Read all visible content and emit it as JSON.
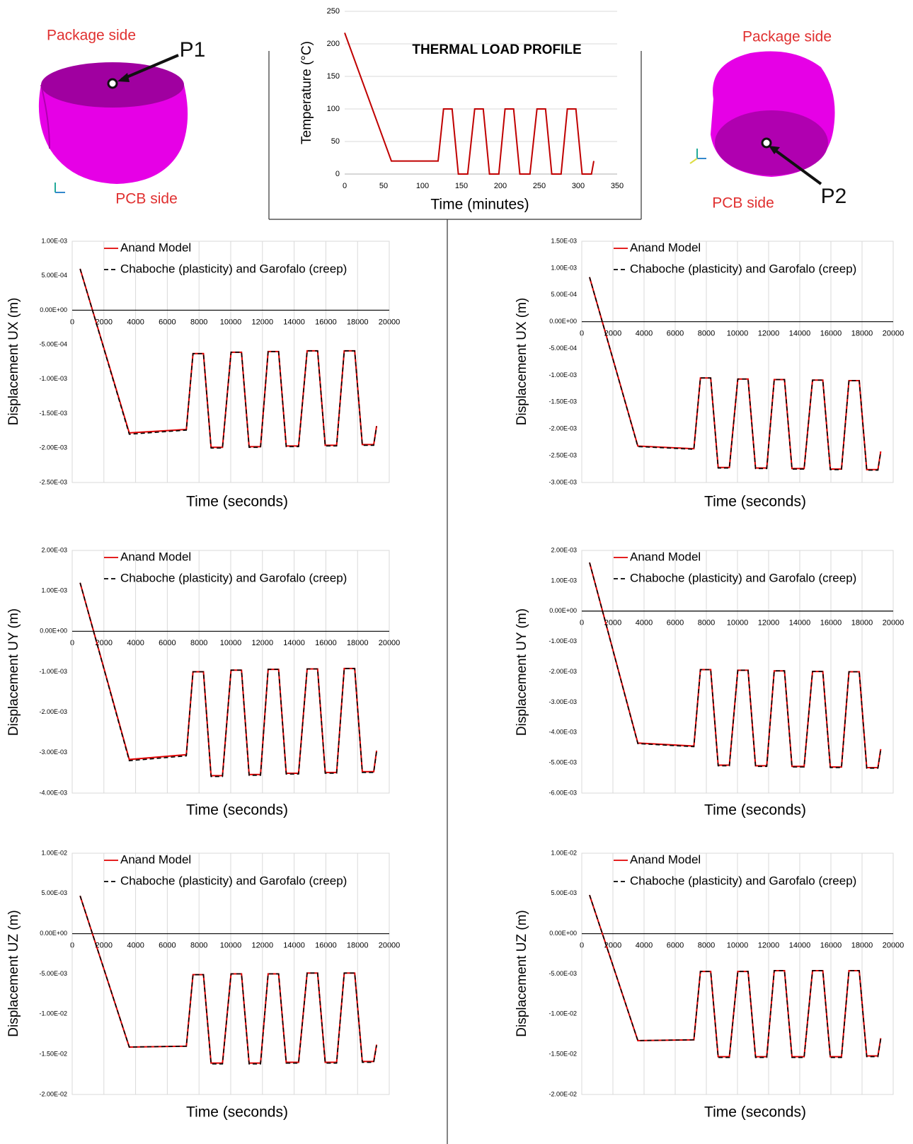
{
  "illustrations": [
    {
      "top_label": "Package side",
      "point": "P1",
      "bottom_label": "PCB side"
    },
    {
      "top_label": "Package side",
      "point": "P2",
      "bottom_label": "PCB side"
    }
  ],
  "chart_data": [
    {
      "type": "line",
      "title": "THERMAL LOAD PROFILE",
      "xlabel": "Time (minutes)",
      "ylabel": "Temperature (°C)",
      "x": [
        0,
        60,
        120,
        127,
        138,
        146,
        158,
        167,
        178,
        186,
        198,
        206,
        217,
        225,
        238,
        247,
        258,
        266,
        278,
        286,
        297,
        305,
        317,
        320
      ],
      "values": [
        217,
        20,
        20,
        100,
        100,
        0,
        0,
        100,
        100,
        0,
        0,
        100,
        100,
        0,
        0,
        100,
        100,
        0,
        0,
        100,
        100,
        0,
        0,
        20
      ],
      "color": "#c00000",
      "xlim": [
        0,
        350
      ],
      "xticks": [
        0,
        50,
        100,
        150,
        200,
        250,
        300,
        350
      ],
      "ylim": [
        0,
        250
      ],
      "yticks": [
        0,
        50,
        100,
        150,
        200,
        250
      ],
      "grid": "y"
    },
    {
      "type": "line",
      "xlabel": "Time (seconds)",
      "ylabel": "Displacement UX (m)",
      "legend": "upper left",
      "grid": "x",
      "x": [
        500,
        3600,
        7200,
        7620,
        8280,
        8760,
        9480,
        10020,
        10680,
        11160,
        11880,
        12360,
        13020,
        13500,
        14280,
        14820,
        15480,
        15960,
        16680,
        17160,
        17820,
        18300,
        19020,
        19200
      ],
      "series": [
        {
          "name": "Anand Model",
          "color": "#e00000",
          "style": "solid",
          "values": [
            0.0006,
            -0.00178,
            -0.00173,
            -0.00063,
            -0.00063,
            -0.00199,
            -0.00199,
            -0.00061,
            -0.00061,
            -0.00198,
            -0.00198,
            -0.0006,
            -0.0006,
            -0.00197,
            -0.00197,
            -0.00059,
            -0.00059,
            -0.00196,
            -0.00196,
            -0.00059,
            -0.00059,
            -0.00195,
            -0.00195,
            -0.00168
          ]
        },
        {
          "name": "Chaboche (plasticity) and Garofalo (creep)",
          "color": "#000000",
          "style": "dashed",
          "values": [
            0.0006,
            -0.0018,
            -0.00174,
            -0.00063,
            -0.00063,
            -0.002,
            -0.002,
            -0.00061,
            -0.00061,
            -0.00199,
            -0.00199,
            -0.0006,
            -0.0006,
            -0.00198,
            -0.00198,
            -0.00059,
            -0.00059,
            -0.00197,
            -0.00197,
            -0.00059,
            -0.00059,
            -0.00196,
            -0.00196,
            -0.00169
          ]
        }
      ],
      "xlim": [
        0,
        20000
      ],
      "xticks": [
        0,
        2000,
        4000,
        6000,
        8000,
        10000,
        12000,
        14000,
        16000,
        18000,
        20000
      ],
      "ylim": [
        -0.0025,
        0.001
      ],
      "yticks": [
        {
          "value": 0.001,
          "label": "1.00E-03"
        },
        {
          "value": 0.0005,
          "label": "5.00E-04"
        },
        {
          "value": 0,
          "label": "0.00E+00"
        },
        {
          "value": -0.0005,
          "label": "-5.00E-04"
        },
        {
          "value": -0.001,
          "label": "-1.00E-03"
        },
        {
          "value": -0.0015,
          "label": "-1.50E-03"
        },
        {
          "value": -0.002,
          "label": "-2.00E-03"
        },
        {
          "value": -0.0025,
          "label": "-2.50E-03"
        }
      ]
    },
    {
      "type": "line",
      "xlabel": "Time (seconds)",
      "ylabel": "Displacement UX (m)",
      "legend": "upper left",
      "grid": "x",
      "x": [
        500,
        3600,
        7200,
        7620,
        8280,
        8760,
        9480,
        10020,
        10680,
        11160,
        11880,
        12360,
        13020,
        13500,
        14280,
        14820,
        15480,
        15960,
        16680,
        17160,
        17820,
        18300,
        19020,
        19200
      ],
      "series": [
        {
          "name": "Anand Model",
          "color": "#e00000",
          "style": "solid",
          "values": [
            0.00083,
            -0.00232,
            -0.00237,
            -0.00105,
            -0.00105,
            -0.00272,
            -0.00272,
            -0.00107,
            -0.00107,
            -0.00273,
            -0.00273,
            -0.00108,
            -0.00108,
            -0.00274,
            -0.00274,
            -0.00109,
            -0.00109,
            -0.00275,
            -0.00275,
            -0.0011,
            -0.0011,
            -0.00276,
            -0.00276,
            -0.00242
          ]
        },
        {
          "name": "Chaboche (plasticity) and Garofalo (creep)",
          "color": "#000000",
          "style": "dashed",
          "values": [
            0.00083,
            -0.00233,
            -0.00238,
            -0.00105,
            -0.00105,
            -0.00273,
            -0.00273,
            -0.00107,
            -0.00107,
            -0.00274,
            -0.00274,
            -0.00108,
            -0.00108,
            -0.00275,
            -0.00275,
            -0.00109,
            -0.00109,
            -0.00276,
            -0.00276,
            -0.0011,
            -0.0011,
            -0.00277,
            -0.00277,
            -0.00243
          ]
        }
      ],
      "xlim": [
        0,
        20000
      ],
      "xticks": [
        0,
        2000,
        4000,
        6000,
        8000,
        10000,
        12000,
        14000,
        16000,
        18000,
        20000
      ],
      "ylim": [
        -0.003,
        0.0015
      ],
      "yticks": [
        {
          "value": 0.0015,
          "label": "1.50E-03"
        },
        {
          "value": 0.001,
          "label": "1.00E-03"
        },
        {
          "value": 0.0005,
          "label": "5.00E-04"
        },
        {
          "value": 0,
          "label": "0.00E+00"
        },
        {
          "value": -0.0005,
          "label": "-5.00E-04"
        },
        {
          "value": -0.001,
          "label": "-1.00E-03"
        },
        {
          "value": -0.0015,
          "label": "-1.50E-03"
        },
        {
          "value": -0.002,
          "label": "-2.00E-03"
        },
        {
          "value": -0.0025,
          "label": "-2.50E-03"
        },
        {
          "value": -0.003,
          "label": "-3.00E-03"
        }
      ]
    },
    {
      "type": "line",
      "xlabel": "Time (seconds)",
      "ylabel": "Displacement UY (m)",
      "legend": "upper left",
      "grid": "x",
      "x": [
        500,
        3600,
        7200,
        7620,
        8280,
        8760,
        9480,
        10020,
        10680,
        11160,
        11880,
        12360,
        13020,
        13500,
        14280,
        14820,
        15480,
        15960,
        16680,
        17160,
        17820,
        18300,
        19020,
        19200
      ],
      "series": [
        {
          "name": "Anand Model",
          "color": "#e00000",
          "style": "solid",
          "values": [
            0.0012,
            -0.00317,
            -0.00305,
            -0.001,
            -0.001,
            -0.00357,
            -0.00357,
            -0.00096,
            -0.00096,
            -0.00354,
            -0.00354,
            -0.00094,
            -0.00094,
            -0.00351,
            -0.00351,
            -0.00093,
            -0.00093,
            -0.00349,
            -0.00349,
            -0.00092,
            -0.00092,
            -0.00347,
            -0.00347,
            -0.00295
          ]
        },
        {
          "name": "Chaboche (plasticity) and Garofalo (creep)",
          "color": "#000000",
          "style": "dashed",
          "values": [
            0.0012,
            -0.0032,
            -0.00308,
            -0.001,
            -0.001,
            -0.00359,
            -0.00359,
            -0.00096,
            -0.00096,
            -0.00356,
            -0.00356,
            -0.00094,
            -0.00094,
            -0.00353,
            -0.00353,
            -0.00093,
            -0.00093,
            -0.00351,
            -0.00351,
            -0.00092,
            -0.00092,
            -0.00349,
            -0.00349,
            -0.00297
          ]
        }
      ],
      "xlim": [
        0,
        20000
      ],
      "xticks": [
        0,
        2000,
        4000,
        6000,
        8000,
        10000,
        12000,
        14000,
        16000,
        18000,
        20000
      ],
      "ylim": [
        -0.004,
        0.002
      ],
      "yticks": [
        {
          "value": 0.002,
          "label": "2.00E-03"
        },
        {
          "value": 0.001,
          "label": "1.00E-03"
        },
        {
          "value": 0,
          "label": "0.00E+00"
        },
        {
          "value": -0.001,
          "label": "-1.00E-03"
        },
        {
          "value": -0.002,
          "label": "-2.00E-03"
        },
        {
          "value": -0.003,
          "label": "-3.00E-03"
        },
        {
          "value": -0.004,
          "label": "-4.00E-03"
        }
      ]
    },
    {
      "type": "line",
      "xlabel": "Time (seconds)",
      "ylabel": "Displacement UY (m)",
      "legend": "upper left",
      "grid": "x",
      "x": [
        500,
        3600,
        7200,
        7620,
        8280,
        8760,
        9480,
        10020,
        10680,
        11160,
        11880,
        12360,
        13020,
        13500,
        14280,
        14820,
        15480,
        15960,
        16680,
        17160,
        17820,
        18300,
        19020,
        19200
      ],
      "series": [
        {
          "name": "Anand Model",
          "color": "#e00000",
          "style": "solid",
          "values": [
            0.0016,
            -0.00435,
            -0.00445,
            -0.00193,
            -0.00193,
            -0.00508,
            -0.00508,
            -0.00195,
            -0.00195,
            -0.0051,
            -0.0051,
            -0.00197,
            -0.00197,
            -0.00512,
            -0.00512,
            -0.00199,
            -0.00199,
            -0.00514,
            -0.00514,
            -0.002,
            -0.002,
            -0.00516,
            -0.00516,
            -0.00455
          ]
        },
        {
          "name": "Chaboche (plasticity) and Garofalo (creep)",
          "color": "#000000",
          "style": "dashed",
          "values": [
            0.0016,
            -0.00437,
            -0.00447,
            -0.00193,
            -0.00193,
            -0.0051,
            -0.0051,
            -0.00195,
            -0.00195,
            -0.00512,
            -0.00512,
            -0.00197,
            -0.00197,
            -0.00514,
            -0.00514,
            -0.00199,
            -0.00199,
            -0.00516,
            -0.00516,
            -0.002,
            -0.002,
            -0.00518,
            -0.00518,
            -0.00457
          ]
        }
      ],
      "xlim": [
        0,
        20000
      ],
      "xticks": [
        0,
        2000,
        4000,
        6000,
        8000,
        10000,
        12000,
        14000,
        16000,
        18000,
        20000
      ],
      "ylim": [
        -0.006,
        0.002
      ],
      "yticks": [
        {
          "value": 0.002,
          "label": "2.00E-03"
        },
        {
          "value": 0.001,
          "label": "1.00E-03"
        },
        {
          "value": 0,
          "label": "0.00E+00"
        },
        {
          "value": -0.001,
          "label": "-1.00E-03"
        },
        {
          "value": -0.002,
          "label": "-2.00E-03"
        },
        {
          "value": -0.003,
          "label": "-3.00E-03"
        },
        {
          "value": -0.004,
          "label": "-4.00E-03"
        },
        {
          "value": -0.005,
          "label": "-5.00E-03"
        },
        {
          "value": -0.006,
          "label": "-6.00E-03"
        }
      ]
    },
    {
      "type": "line",
      "xlabel": "Time (seconds)",
      "ylabel": "Displacement UZ (m)",
      "legend": "upper left",
      "grid": "x",
      "x": [
        500,
        3600,
        7200,
        7620,
        8280,
        8760,
        9480,
        10020,
        10680,
        11160,
        11880,
        12360,
        13020,
        13500,
        14280,
        14820,
        15480,
        15960,
        16680,
        17160,
        17820,
        18300,
        19020,
        19200
      ],
      "series": [
        {
          "name": "Anand Model",
          "color": "#e00000",
          "style": "solid",
          "values": [
            0.0047,
            -0.0141,
            -0.014,
            -0.0051,
            -0.0051,
            -0.0161,
            -0.0161,
            -0.005,
            -0.005,
            -0.0161,
            -0.0161,
            -0.005,
            -0.005,
            -0.016,
            -0.016,
            -0.0049,
            -0.0049,
            -0.016,
            -0.016,
            -0.0049,
            -0.0049,
            -0.0159,
            -0.0159,
            -0.0138
          ]
        },
        {
          "name": "Chaboche (plasticity) and Garofalo (creep)",
          "color": "#000000",
          "style": "dashed",
          "values": [
            0.0047,
            -0.0141,
            -0.014,
            -0.0051,
            -0.0051,
            -0.0162,
            -0.0162,
            -0.005,
            -0.005,
            -0.0162,
            -0.0162,
            -0.005,
            -0.005,
            -0.0161,
            -0.0161,
            -0.0049,
            -0.0049,
            -0.0161,
            -0.0161,
            -0.0049,
            -0.0049,
            -0.016,
            -0.016,
            -0.0139
          ]
        }
      ],
      "xlim": [
        0,
        20000
      ],
      "xticks": [
        0,
        2000,
        4000,
        6000,
        8000,
        10000,
        12000,
        14000,
        16000,
        18000,
        20000
      ],
      "ylim": [
        -0.02,
        0.01
      ],
      "yticks": [
        {
          "value": 0.01,
          "label": "1.00E-02"
        },
        {
          "value": 0.005,
          "label": "5.00E-03"
        },
        {
          "value": 0,
          "label": "0.00E+00"
        },
        {
          "value": -0.005,
          "label": "-5.00E-03"
        },
        {
          "value": -0.01,
          "label": "-1.00E-02"
        },
        {
          "value": -0.015,
          "label": "-1.50E-02"
        },
        {
          "value": -0.02,
          "label": "-2.00E-02"
        }
      ]
    },
    {
      "type": "line",
      "xlabel": "Time (seconds)",
      "ylabel": "Displacement UZ (m)",
      "legend": "upper left",
      "grid": "x",
      "x": [
        500,
        3600,
        7200,
        7620,
        8280,
        8760,
        9480,
        10020,
        10680,
        11160,
        11880,
        12360,
        13020,
        13500,
        14280,
        14820,
        15480,
        15960,
        16680,
        17160,
        17820,
        18300,
        19020,
        19200
      ],
      "series": [
        {
          "name": "Anand Model",
          "color": "#e00000",
          "style": "solid",
          "values": [
            0.0048,
            -0.0133,
            -0.0132,
            -0.0047,
            -0.0047,
            -0.0153,
            -0.0153,
            -0.0047,
            -0.0047,
            -0.0153,
            -0.0153,
            -0.0046,
            -0.0046,
            -0.0153,
            -0.0153,
            -0.0046,
            -0.0046,
            -0.0153,
            -0.0153,
            -0.0046,
            -0.0046,
            -0.0152,
            -0.0152,
            -0.013
          ]
        },
        {
          "name": "Chaboche (plasticity) and Garofalo (creep)",
          "color": "#000000",
          "style": "dashed",
          "values": [
            0.0048,
            -0.0133,
            -0.0132,
            -0.0047,
            -0.0047,
            -0.0154,
            -0.0154,
            -0.0047,
            -0.0047,
            -0.0154,
            -0.0154,
            -0.0046,
            -0.0046,
            -0.0154,
            -0.0154,
            -0.0046,
            -0.0046,
            -0.0154,
            -0.0154,
            -0.0046,
            -0.0046,
            -0.0153,
            -0.0153,
            -0.0131
          ]
        }
      ],
      "xlim": [
        0,
        20000
      ],
      "xticks": [
        0,
        2000,
        4000,
        6000,
        8000,
        10000,
        12000,
        14000,
        16000,
        18000,
        20000
      ],
      "ylim": [
        -0.02,
        0.01
      ],
      "yticks": [
        {
          "value": 0.01,
          "label": "1.00E-02"
        },
        {
          "value": 0.005,
          "label": "5.00E-03"
        },
        {
          "value": 0,
          "label": "0.00E+00"
        },
        {
          "value": -0.005,
          "label": "-5.00E-03"
        },
        {
          "value": -0.01,
          "label": "-1.00E-02"
        },
        {
          "value": -0.015,
          "label": "-1.50E-02"
        },
        {
          "value": -0.02,
          "label": "-2.00E-02"
        }
      ]
    }
  ]
}
